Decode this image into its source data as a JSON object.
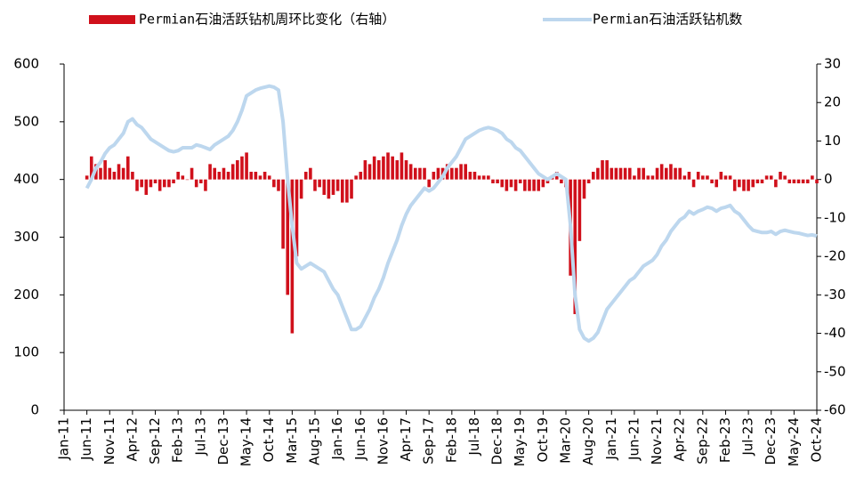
{
  "chart_data": {
    "type": "bar-line",
    "categories": [
      "Jan-11",
      null,
      null,
      null,
      null,
      "Jun-11",
      null,
      null,
      null,
      null,
      "Nov-11",
      null,
      null,
      null,
      null,
      "Apr-12",
      null,
      null,
      null,
      null,
      "Sep-12",
      null,
      null,
      null,
      null,
      "Feb-13",
      null,
      null,
      null,
      null,
      "Jul-13",
      null,
      null,
      null,
      null,
      "Dec-13",
      null,
      null,
      null,
      null,
      "May-14",
      null,
      null,
      null,
      null,
      "Oct-14",
      null,
      null,
      null,
      null,
      "Mar-15",
      null,
      null,
      null,
      null,
      "Aug-15",
      null,
      null,
      null,
      null,
      "Jan-16",
      null,
      null,
      null,
      null,
      "Jun-16",
      null,
      null,
      null,
      null,
      "Nov-16",
      null,
      null,
      null,
      null,
      "Apr-17",
      null,
      null,
      null,
      null,
      "Sep-17",
      null,
      null,
      null,
      null,
      "Feb-18",
      null,
      null,
      null,
      null,
      "Jul-18",
      null,
      null,
      null,
      null,
      "Dec-18",
      null,
      null,
      null,
      null,
      "May-19",
      null,
      null,
      null,
      null,
      "Oct-19",
      null,
      null,
      null,
      null,
      "Mar-20",
      null,
      null,
      null,
      null,
      "Aug-20",
      null,
      null,
      null,
      null,
      "Jan-21",
      null,
      null,
      null,
      null,
      "Jun-21",
      null,
      null,
      null,
      null,
      "Nov-21",
      null,
      null,
      null,
      null,
      "Apr-22",
      null,
      null,
      null,
      null,
      "Sep-22",
      null,
      null,
      null,
      null,
      "Feb-23",
      null,
      null,
      null,
      null,
      "Jul-23",
      null,
      null,
      null,
      null,
      "Dec-23",
      null,
      null,
      null,
      null,
      "May-24",
      null,
      null,
      null,
      null,
      "Oct-24"
    ],
    "series": [
      {
        "name": "Permian石油活跃钻机周环比变化（右轴）",
        "type": "bar",
        "axis": "y2",
        "color": "#d0101b",
        "values": [
          null,
          null,
          null,
          null,
          null,
          1,
          6,
          4,
          3,
          5,
          3,
          2,
          4,
          3,
          6,
          2,
          -3,
          -2,
          -4,
          -2,
          -1,
          -3,
          -2,
          -2,
          -1,
          2,
          1,
          0,
          3,
          -2,
          -1,
          -3,
          4,
          3,
          2,
          3,
          2,
          4,
          5,
          6,
          7,
          2,
          2,
          1,
          2,
          1,
          -2,
          -3,
          -18,
          -30,
          -40,
          -20,
          -5,
          2,
          3,
          -3,
          -2,
          -4,
          -5,
          -4,
          -3,
          -6,
          -6,
          -5,
          1,
          2,
          5,
          4,
          6,
          5,
          6,
          7,
          6,
          5,
          7,
          5,
          4,
          3,
          3,
          3,
          -2,
          2,
          3,
          3,
          4,
          3,
          3,
          4,
          4,
          2,
          2,
          1,
          1,
          1,
          -1,
          -1,
          -2,
          -3,
          -2,
          -3,
          -1,
          -3,
          -3,
          -3,
          -3,
          -2,
          -1,
          1,
          2,
          -1,
          -2,
          -25,
          -35,
          -16,
          -5,
          -1,
          2,
          3,
          5,
          5,
          3,
          3,
          3,
          3,
          3,
          1,
          3,
          3,
          1,
          1,
          3,
          4,
          3,
          4,
          3,
          3,
          1,
          2,
          -2,
          2,
          1,
          1,
          -1,
          -2,
          2,
          1,
          1,
          -3,
          -2,
          -3,
          -3,
          -2,
          -1,
          -1,
          1,
          1,
          -2,
          2,
          1,
          -1,
          -1,
          -1,
          -1,
          -1,
          1,
          -1
        ]
      },
      {
        "name": "Permian石油活跃钻机数",
        "type": "line",
        "axis": "y",
        "color": "#bdd7ee",
        "values": [
          null,
          null,
          null,
          null,
          null,
          385,
          400,
          420,
          430,
          445,
          455,
          460,
          470,
          480,
          500,
          505,
          495,
          490,
          480,
          470,
          465,
          460,
          455,
          450,
          448,
          450,
          455,
          455,
          455,
          460,
          458,
          455,
          452,
          460,
          465,
          470,
          475,
          485,
          500,
          520,
          545,
          550,
          555,
          558,
          560,
          562,
          560,
          555,
          500,
          400,
          320,
          255,
          245,
          250,
          255,
          250,
          245,
          240,
          225,
          210,
          200,
          180,
          160,
          140,
          140,
          145,
          160,
          175,
          195,
          210,
          230,
          255,
          275,
          295,
          320,
          340,
          355,
          365,
          375,
          385,
          380,
          385,
          395,
          405,
          420,
          430,
          440,
          455,
          470,
          475,
          480,
          485,
          488,
          490,
          488,
          485,
          480,
          470,
          465,
          455,
          450,
          440,
          430,
          420,
          410,
          405,
          400,
          405,
          410,
          405,
          400,
          320,
          200,
          140,
          125,
          120,
          125,
          135,
          155,
          175,
          185,
          195,
          205,
          215,
          225,
          230,
          240,
          250,
          255,
          260,
          270,
          285,
          295,
          310,
          320,
          330,
          335,
          345,
          340,
          345,
          348,
          352,
          350,
          345,
          350,
          352,
          355,
          345,
          340,
          330,
          320,
          312,
          310,
          308,
          308,
          310,
          305,
          310,
          312,
          310,
          308,
          307,
          305,
          303,
          304,
          302
        ]
      }
    ],
    "ylim": [
      0,
      600
    ],
    "yticks": [
      0,
      100,
      200,
      300,
      400,
      500,
      600
    ],
    "y2lim": [
      -60,
      30
    ],
    "y2ticks": [
      -60,
      -50,
      -40,
      -30,
      -20,
      -10,
      0,
      10,
      20,
      30
    ],
    "grid": false,
    "legend": "top"
  }
}
